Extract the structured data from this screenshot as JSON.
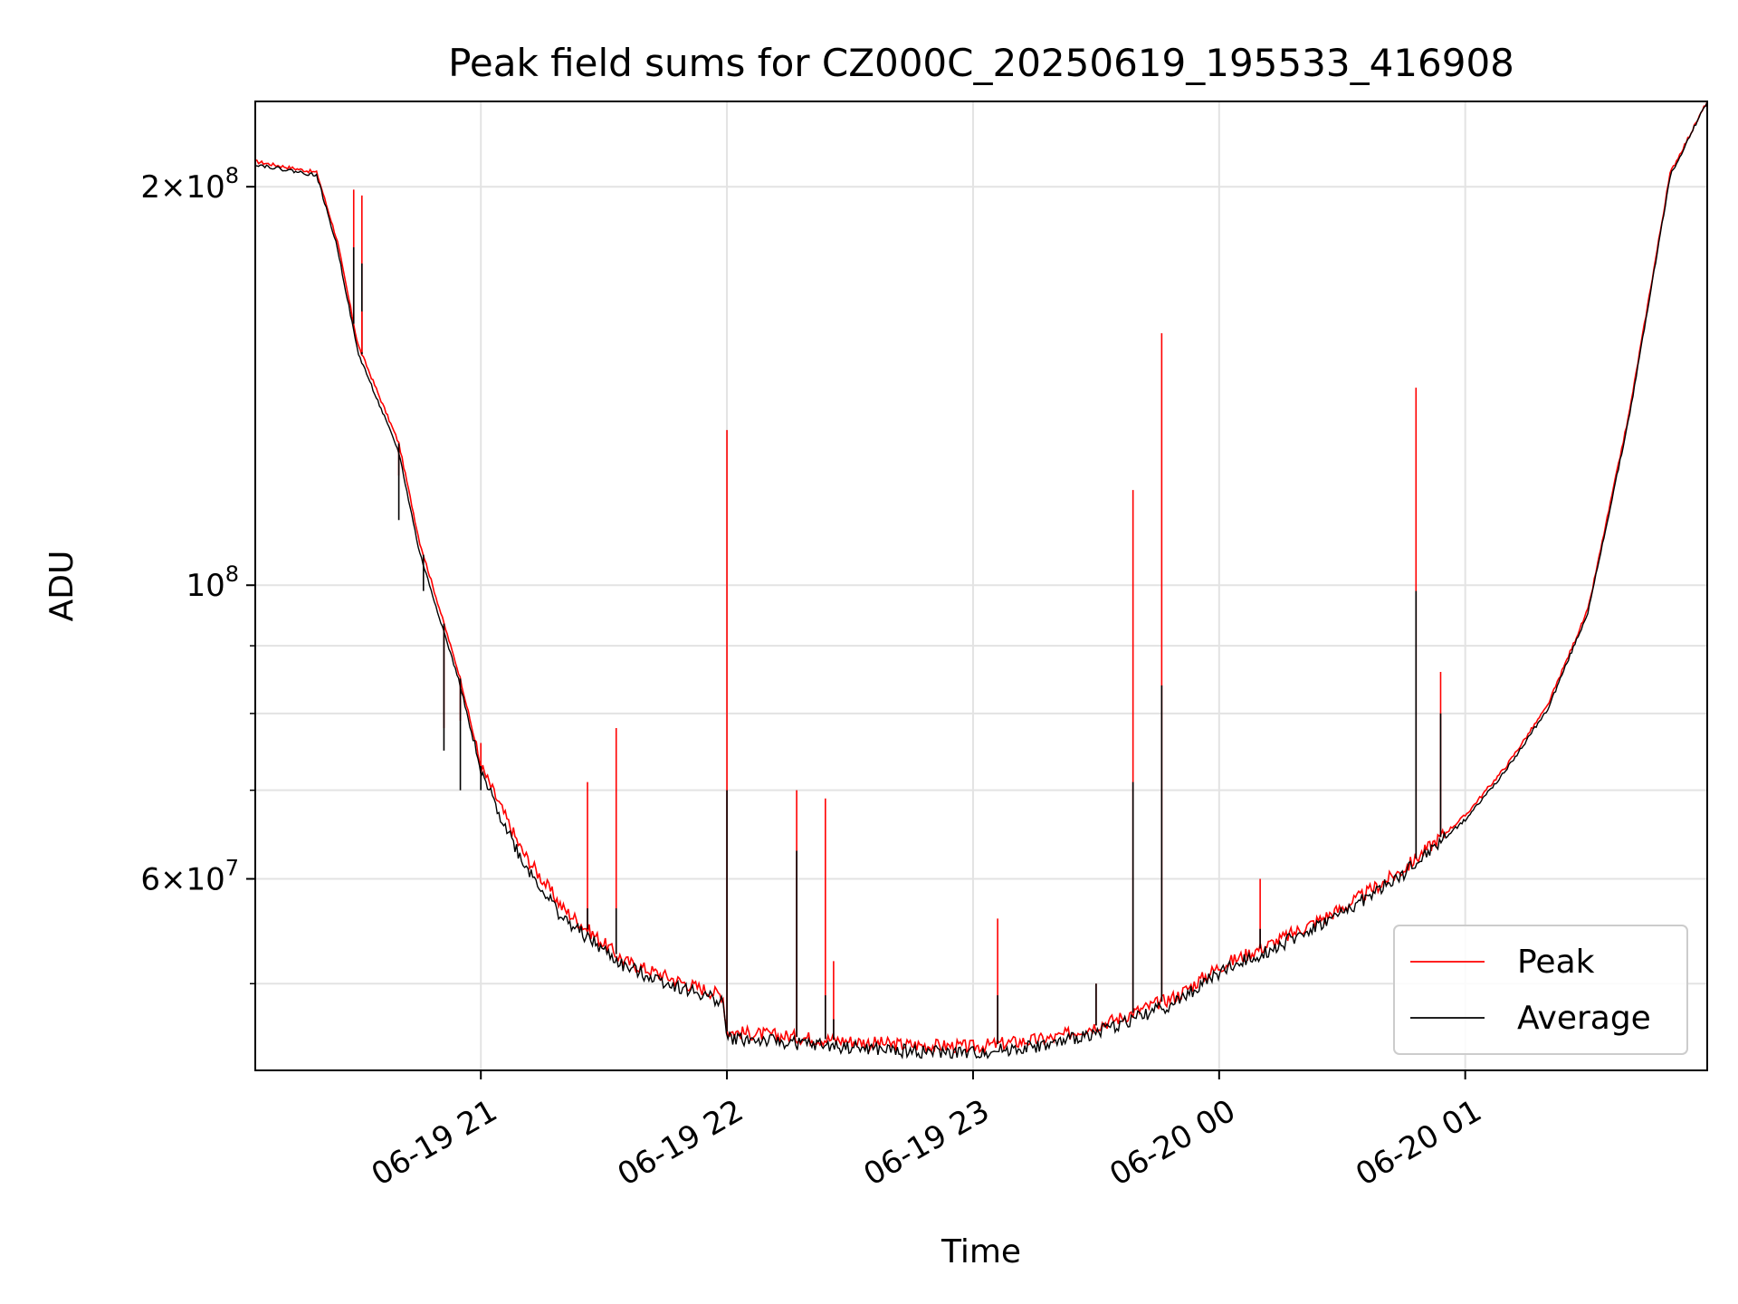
{
  "chart_data": {
    "type": "line",
    "title": "Peak field sums for CZ000C_20250619_195533_416908",
    "xlabel": "Time",
    "ylabel": "ADU",
    "yscale": "log",
    "ylim": [
      43000000,
      232000000
    ],
    "xlim": [
      "2025-06-19 20:05",
      "2025-06-20 01:59"
    ],
    "grid": true,
    "legend_position": "lower-right",
    "x_ticks": [
      {
        "t": "2025-06-19 21:00",
        "label": "06-19 21"
      },
      {
        "t": "2025-06-19 22:00",
        "label": "06-19 22"
      },
      {
        "t": "2025-06-19 23:00",
        "label": "06-19 23"
      },
      {
        "t": "2025-06-20 00:00",
        "label": "06-20 00"
      },
      {
        "t": "2025-06-20 01:00",
        "label": "06-20 01"
      }
    ],
    "y_major_ticks": [
      {
        "value": 60000000,
        "base": "6",
        "exp": "7"
      },
      {
        "value": 100000000,
        "base": "",
        "exp": "8"
      },
      {
        "value": 200000000,
        "base": "2",
        "exp": "8"
      }
    ],
    "y_minor_ticks": [
      50000000,
      70000000,
      80000000,
      90000000
    ],
    "series": [
      {
        "name": "Peak",
        "color": "#ff0000",
        "x": [
          "2025-06-19 20:05",
          "2025-06-19 20:20",
          "2025-06-19 20:25",
          "2025-06-19 20:30",
          "2025-06-19 20:40",
          "2025-06-19 20:45",
          "2025-06-19 20:55",
          "2025-06-19 21:00",
          "2025-06-19 21:10",
          "2025-06-19 21:20",
          "2025-06-19 21:35",
          "2025-06-19 21:50",
          "2025-06-19 21:59",
          "2025-06-19 22:00",
          "2025-06-19 22:20",
          "2025-06-19 22:40",
          "2025-06-19 23:00",
          "2025-06-19 23:20",
          "2025-06-19 23:35",
          "2025-06-19 23:50",
          "2025-06-20 00:00",
          "2025-06-20 00:15",
          "2025-06-20 00:30",
          "2025-06-20 00:45",
          "2025-06-20 01:00",
          "2025-06-20 01:10",
          "2025-06-20 01:20",
          "2025-06-20 01:30",
          "2025-06-20 01:40",
          "2025-06-20 01:50",
          "2025-06-20 01:59"
        ],
        "values": [
          209000000,
          205000000,
          182000000,
          152000000,
          128000000,
          108000000,
          85000000,
          73000000,
          63000000,
          57000000,
          52000000,
          50000000,
          49000000,
          46000000,
          45500000,
          45000000,
          44800000,
          45500000,
          47000000,
          49000000,
          51500000,
          54000000,
          57000000,
          61000000,
          67000000,
          73000000,
          81000000,
          96000000,
          135000000,
          205000000,
          232000000
        ]
      },
      {
        "name": "Average",
        "color": "#000000",
        "x": [
          "2025-06-19 20:05",
          "2025-06-19 20:20",
          "2025-06-19 20:25",
          "2025-06-19 20:30",
          "2025-06-19 20:40",
          "2025-06-19 20:45",
          "2025-06-19 20:55",
          "2025-06-19 21:00",
          "2025-06-19 21:10",
          "2025-06-19 21:20",
          "2025-06-19 21:35",
          "2025-06-19 21:50",
          "2025-06-19 21:59",
          "2025-06-19 22:00",
          "2025-06-19 22:20",
          "2025-06-19 22:40",
          "2025-06-19 23:00",
          "2025-06-19 23:20",
          "2025-06-19 23:35",
          "2025-06-19 23:50",
          "2025-06-20 00:00",
          "2025-06-20 00:15",
          "2025-06-20 00:30",
          "2025-06-20 00:45",
          "2025-06-20 01:00",
          "2025-06-20 01:10",
          "2025-06-20 01:20",
          "2025-06-20 01:30",
          "2025-06-20 01:40",
          "2025-06-20 01:50",
          "2025-06-20 01:59"
        ],
        "values": [
          208000000,
          204000000,
          180000000,
          150000000,
          126000000,
          106000000,
          84000000,
          72000000,
          62000000,
          56000000,
          51500000,
          49500000,
          48500000,
          45500000,
          45000000,
          44500000,
          44300000,
          45000000,
          46500000,
          48500000,
          51000000,
          53500000,
          56500000,
          60500000,
          66500000,
          72500000,
          80500000,
          95500000,
          134000000,
          204000000,
          232000000
        ]
      }
    ],
    "spikes": [
      {
        "t": "2025-06-19 20:29",
        "peak": 199000000,
        "avg": 180000000
      },
      {
        "t": "2025-06-19 20:31",
        "peak": 197000000,
        "avg": 175000000
      },
      {
        "t": "2025-06-19 20:31",
        "peak": 161000000,
        "avg": 150000000
      },
      {
        "t": "2025-06-19 20:40",
        "peak": 121000000,
        "avg": 112000000
      },
      {
        "t": "2025-06-19 20:46",
        "peak": 104000000,
        "avg": 99000000
      },
      {
        "t": "2025-06-19 20:51",
        "peak": 78000000,
        "avg": 75000000
      },
      {
        "t": "2025-06-19 20:55",
        "peak": 79000000,
        "avg": 70000000
      },
      {
        "t": "2025-06-19 21:00",
        "peak": 76000000,
        "avg": 70000000
      },
      {
        "t": "2025-06-19 21:26",
        "peak": 71000000,
        "avg": 57000000
      },
      {
        "t": "2025-06-19 21:33",
        "peak": 78000000,
        "avg": 57000000
      },
      {
        "t": "2025-06-19 22:00",
        "peak": 131000000,
        "avg": 70000000
      },
      {
        "t": "2025-06-19 22:17",
        "peak": 70000000,
        "avg": 63000000
      },
      {
        "t": "2025-06-19 22:24",
        "peak": 69000000,
        "avg": 49000000
      },
      {
        "t": "2025-06-19 22:26",
        "peak": 52000000,
        "avg": 47000000
      },
      {
        "t": "2025-06-19 23:06",
        "peak": 56000000,
        "avg": 49000000
      },
      {
        "t": "2025-06-19 23:30",
        "peak": 50000000,
        "avg": 50000000
      },
      {
        "t": "2025-06-19 23:39",
        "peak": 118000000,
        "avg": 71000000
      },
      {
        "t": "2025-06-19 23:46",
        "peak": 155000000,
        "avg": 84000000
      },
      {
        "t": "2025-06-20 00:10",
        "peak": 60000000,
        "avg": 55000000
      },
      {
        "t": "2025-06-20 00:48",
        "peak": 141000000,
        "avg": 99000000
      },
      {
        "t": "2025-06-20 00:54",
        "peak": 86000000,
        "avg": 80000000
      }
    ]
  }
}
